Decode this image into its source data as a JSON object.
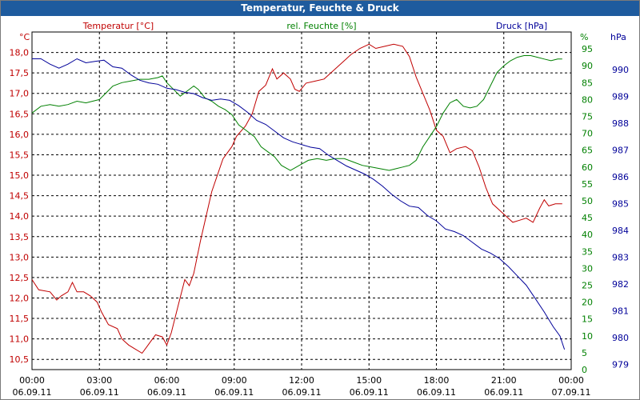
{
  "window": {
    "title": "Temperatur, Feuchte & Druck"
  },
  "colors": {
    "temperature": "#c00000",
    "humidity": "#008000",
    "pressure": "#000099",
    "titlebar": "#1e5b9e"
  },
  "chart_data": {
    "type": "line",
    "title": "Temperatur, Feuchte & Druck",
    "grid": true,
    "x_ticks": [
      {
        "time": "00:00",
        "date": "06.09.11",
        "h": 0
      },
      {
        "time": "03:00",
        "date": "06.09.11",
        "h": 3
      },
      {
        "time": "06:00",
        "date": "06.09.11",
        "h": 6
      },
      {
        "time": "09:00",
        "date": "06.09.11",
        "h": 9
      },
      {
        "time": "12:00",
        "date": "06.09.11",
        "h": 12
      },
      {
        "time": "15:00",
        "date": "06.09.11",
        "h": 15
      },
      {
        "time": "18:00",
        "date": "06.09.11",
        "h": 18
      },
      {
        "time": "21:00",
        "date": "06.09.11",
        "h": 21
      },
      {
        "time": "00:00",
        "date": "07.09.11",
        "h": 24
      }
    ],
    "xlim": [
      0,
      24
    ],
    "axes": {
      "temperature": {
        "unit": "°C",
        "ylim": [
          10.25,
          18.5
        ],
        "ticks": [
          "10,5",
          "11,0",
          "11,5",
          "12,0",
          "12,5",
          "13,0",
          "13,5",
          "14,0",
          "14,5",
          "15,0",
          "15,5",
          "16,0",
          "16,5",
          "17,0",
          "17,5",
          "18,0"
        ],
        "tick_values": [
          10.5,
          11.0,
          11.5,
          12.0,
          12.5,
          13.0,
          13.5,
          14.0,
          14.5,
          15.0,
          15.5,
          16.0,
          16.5,
          17.0,
          17.5,
          18.0
        ]
      },
      "humidity": {
        "unit": "%",
        "ylim": [
          0,
          100
        ],
        "ticks": [
          "0",
          "5",
          "10",
          "15",
          "20",
          "25",
          "30",
          "35",
          "40",
          "45",
          "50",
          "55",
          "60",
          "65",
          "70",
          "75",
          "80",
          "85",
          "90",
          "95"
        ],
        "tick_values": [
          0,
          5,
          10,
          15,
          20,
          25,
          30,
          35,
          40,
          45,
          50,
          55,
          60,
          65,
          70,
          75,
          80,
          85,
          90,
          95
        ]
      },
      "pressure": {
        "unit": "hPa",
        "ylim": [
          978.8,
          991.4
        ],
        "ticks": [
          "979",
          "980",
          "981",
          "982",
          "983",
          "984",
          "985",
          "986",
          "987",
          "988",
          "989",
          "990"
        ],
        "tick_values": [
          979,
          980,
          981,
          982,
          983,
          984,
          985,
          986,
          987,
          988,
          989,
          990
        ]
      }
    },
    "series": [
      {
        "name": "Temperatur [°C]",
        "axis": "temperature",
        "color": "#c00000",
        "points": [
          [
            0,
            12.45
          ],
          [
            0.3,
            12.2
          ],
          [
            0.8,
            12.15
          ],
          [
            1.1,
            11.95
          ],
          [
            1.3,
            12.05
          ],
          [
            1.6,
            12.15
          ],
          [
            1.8,
            12.38
          ],
          [
            2.0,
            12.15
          ],
          [
            2.3,
            12.15
          ],
          [
            2.6,
            12.05
          ],
          [
            2.9,
            11.9
          ],
          [
            3.1,
            11.65
          ],
          [
            3.4,
            11.35
          ],
          [
            3.8,
            11.25
          ],
          [
            4.0,
            11.0
          ],
          [
            4.3,
            10.85
          ],
          [
            4.6,
            10.75
          ],
          [
            4.9,
            10.65
          ],
          [
            5.1,
            10.8
          ],
          [
            5.3,
            10.95
          ],
          [
            5.5,
            11.1
          ],
          [
            5.8,
            11.05
          ],
          [
            6.0,
            10.85
          ],
          [
            6.2,
            11.15
          ],
          [
            6.5,
            11.8
          ],
          [
            6.8,
            12.45
          ],
          [
            7.0,
            12.3
          ],
          [
            7.2,
            12.6
          ],
          [
            7.5,
            13.4
          ],
          [
            8.0,
            14.6
          ],
          [
            8.5,
            15.4
          ],
          [
            8.9,
            15.7
          ],
          [
            9.1,
            15.95
          ],
          [
            9.5,
            16.2
          ],
          [
            9.8,
            16.5
          ],
          [
            10.1,
            17.05
          ],
          [
            10.4,
            17.2
          ],
          [
            10.7,
            17.6
          ],
          [
            10.9,
            17.35
          ],
          [
            11.2,
            17.5
          ],
          [
            11.5,
            17.35
          ],
          [
            11.7,
            17.1
          ],
          [
            11.9,
            17.05
          ],
          [
            12.2,
            17.25
          ],
          [
            12.6,
            17.3
          ],
          [
            13.0,
            17.35
          ],
          [
            13.4,
            17.55
          ],
          [
            13.8,
            17.75
          ],
          [
            14.2,
            17.95
          ],
          [
            14.6,
            18.1
          ],
          [
            15.0,
            18.2
          ],
          [
            15.3,
            18.1
          ],
          [
            15.7,
            18.15
          ],
          [
            16.1,
            18.2
          ],
          [
            16.5,
            18.15
          ],
          [
            16.8,
            17.9
          ],
          [
            17.1,
            17.4
          ],
          [
            17.4,
            17.0
          ],
          [
            17.7,
            16.6
          ],
          [
            18.0,
            16.1
          ],
          [
            18.3,
            15.95
          ],
          [
            18.6,
            15.55
          ],
          [
            18.9,
            15.65
          ],
          [
            19.3,
            15.7
          ],
          [
            19.6,
            15.6
          ],
          [
            19.9,
            15.2
          ],
          [
            20.2,
            14.7
          ],
          [
            20.5,
            14.3
          ],
          [
            20.8,
            14.15
          ],
          [
            21.1,
            14.0
          ],
          [
            21.4,
            13.85
          ],
          [
            21.7,
            13.9
          ],
          [
            22.0,
            13.95
          ],
          [
            22.3,
            13.85
          ],
          [
            22.6,
            14.2
          ],
          [
            22.8,
            14.4
          ],
          [
            23.0,
            14.25
          ],
          [
            23.3,
            14.3
          ],
          [
            23.6,
            14.3
          ]
        ]
      },
      {
        "name": "rel. Feuchte [%]",
        "axis": "humidity",
        "color": "#008000",
        "points": [
          [
            0,
            76
          ],
          [
            0.4,
            78
          ],
          [
            0.8,
            78.5
          ],
          [
            1.2,
            78
          ],
          [
            1.6,
            78.5
          ],
          [
            2.0,
            79.5
          ],
          [
            2.4,
            79
          ],
          [
            2.7,
            79.5
          ],
          [
            3.0,
            80
          ],
          [
            3.3,
            82
          ],
          [
            3.6,
            84
          ],
          [
            4.0,
            85
          ],
          [
            4.4,
            85.5
          ],
          [
            4.8,
            86
          ],
          [
            5.2,
            86
          ],
          [
            5.6,
            86.5
          ],
          [
            5.8,
            87
          ],
          [
            6.0,
            85
          ],
          [
            6.3,
            83
          ],
          [
            6.6,
            81
          ],
          [
            6.9,
            82.5
          ],
          [
            7.2,
            84
          ],
          [
            7.4,
            83
          ],
          [
            7.7,
            80.5
          ],
          [
            8.0,
            79.5
          ],
          [
            8.3,
            78
          ],
          [
            8.6,
            77
          ],
          [
            8.9,
            75.5
          ],
          [
            9.2,
            72.5
          ],
          [
            9.5,
            71
          ],
          [
            9.9,
            69
          ],
          [
            10.2,
            66
          ],
          [
            10.5,
            64.5
          ],
          [
            10.8,
            63
          ],
          [
            11.1,
            60.5
          ],
          [
            11.5,
            59
          ],
          [
            11.9,
            60.5
          ],
          [
            12.3,
            62
          ],
          [
            12.7,
            62.5
          ],
          [
            13.1,
            62
          ],
          [
            13.5,
            62.5
          ],
          [
            13.9,
            62.5
          ],
          [
            14.3,
            61.5
          ],
          [
            14.7,
            60.5
          ],
          [
            15.1,
            60
          ],
          [
            15.5,
            59.5
          ],
          [
            15.9,
            59
          ],
          [
            16.2,
            59.5
          ],
          [
            16.5,
            60
          ],
          [
            16.8,
            60.5
          ],
          [
            17.1,
            62
          ],
          [
            17.4,
            66
          ],
          [
            17.7,
            69
          ],
          [
            18.0,
            72
          ],
          [
            18.3,
            76
          ],
          [
            18.6,
            79
          ],
          [
            18.9,
            80
          ],
          [
            19.2,
            78
          ],
          [
            19.5,
            77.5
          ],
          [
            19.8,
            78
          ],
          [
            20.1,
            80
          ],
          [
            20.4,
            84
          ],
          [
            20.7,
            88
          ],
          [
            21.0,
            90
          ],
          [
            21.3,
            91.5
          ],
          [
            21.6,
            92.5
          ],
          [
            21.9,
            93
          ],
          [
            22.2,
            93
          ],
          [
            22.5,
            92.5
          ],
          [
            22.8,
            92
          ],
          [
            23.1,
            91.5
          ],
          [
            23.4,
            92
          ],
          [
            23.6,
            92
          ]
        ]
      },
      {
        "name": "Druck [hPa]",
        "axis": "pressure",
        "color": "#000099",
        "points": [
          [
            0,
            990.4
          ],
          [
            0.4,
            990.4
          ],
          [
            0.8,
            990.2
          ],
          [
            1.2,
            990.05
          ],
          [
            1.6,
            990.2
          ],
          [
            2.0,
            990.4
          ],
          [
            2.4,
            990.25
          ],
          [
            2.8,
            990.3
          ],
          [
            3.2,
            990.35
          ],
          [
            3.6,
            990.1
          ],
          [
            4.0,
            990.05
          ],
          [
            4.4,
            989.8
          ],
          [
            4.8,
            989.6
          ],
          [
            5.2,
            989.5
          ],
          [
            5.6,
            989.45
          ],
          [
            6.0,
            989.3
          ],
          [
            6.4,
            989.25
          ],
          [
            6.8,
            989.15
          ],
          [
            7.2,
            989.1
          ],
          [
            7.6,
            988.95
          ],
          [
            8.0,
            988.85
          ],
          [
            8.4,
            988.9
          ],
          [
            8.8,
            988.85
          ],
          [
            9.2,
            988.65
          ],
          [
            9.6,
            988.4
          ],
          [
            10.0,
            988.1
          ],
          [
            10.4,
            987.95
          ],
          [
            10.8,
            987.7
          ],
          [
            11.2,
            987.45
          ],
          [
            11.6,
            987.3
          ],
          [
            12.0,
            987.2
          ],
          [
            12.4,
            987.1
          ],
          [
            12.8,
            987.05
          ],
          [
            13.2,
            986.8
          ],
          [
            13.6,
            986.6
          ],
          [
            14.0,
            986.4
          ],
          [
            14.4,
            986.25
          ],
          [
            14.8,
            986.1
          ],
          [
            15.2,
            985.9
          ],
          [
            15.6,
            985.65
          ],
          [
            16.0,
            985.35
          ],
          [
            16.4,
            985.1
          ],
          [
            16.8,
            984.9
          ],
          [
            17.2,
            984.85
          ],
          [
            17.6,
            984.55
          ],
          [
            18.0,
            984.35
          ],
          [
            18.4,
            984.05
          ],
          [
            18.8,
            983.95
          ],
          [
            19.2,
            983.8
          ],
          [
            19.6,
            983.55
          ],
          [
            20.0,
            983.3
          ],
          [
            20.4,
            983.15
          ],
          [
            20.8,
            982.95
          ],
          [
            21.2,
            982.65
          ],
          [
            21.6,
            982.3
          ],
          [
            22.0,
            981.95
          ],
          [
            22.4,
            981.45
          ],
          [
            22.8,
            980.95
          ],
          [
            23.2,
            980.4
          ],
          [
            23.5,
            980.05
          ],
          [
            23.7,
            979.55
          ]
        ]
      }
    ]
  }
}
